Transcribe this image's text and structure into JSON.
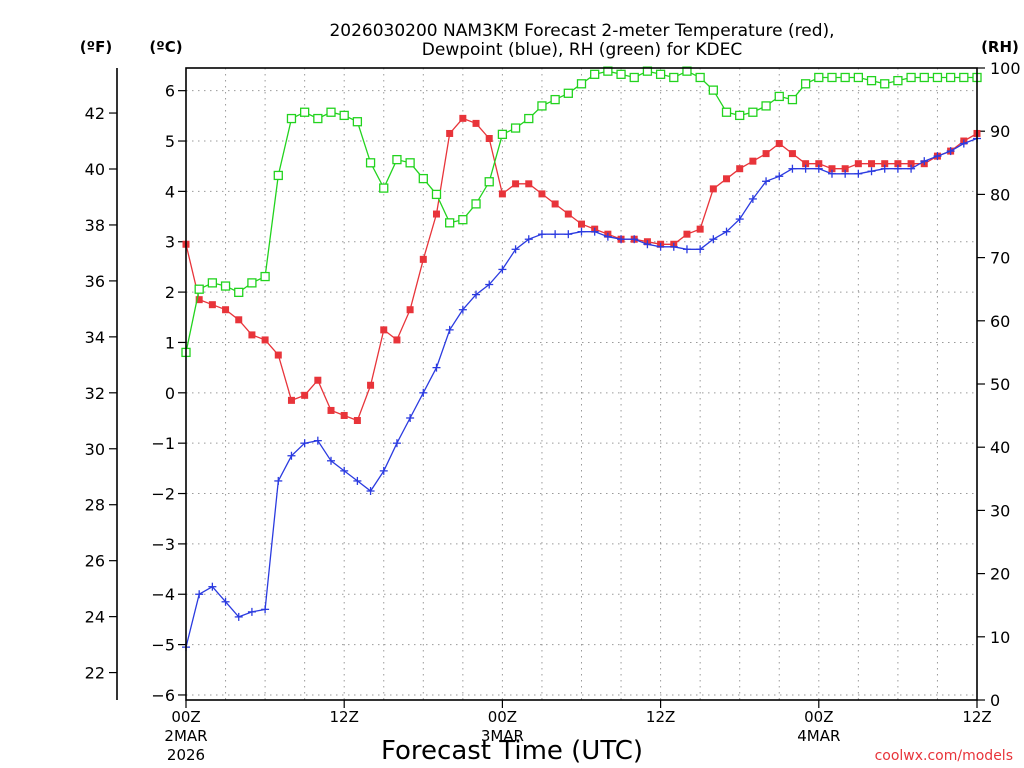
{
  "chart_data": {
    "type": "line",
    "title_line1": "2026030200 NAM3KM Forecast 2-meter Temperature (red),",
    "title_line2": "Dewpoint (blue), RH (green) for KDEC",
    "xlabel": "Forecast Time (UTC)",
    "left_outer_unit": "(ºF)",
    "left_inner_unit": "(ºC)",
    "right_unit": "(RH)",
    "credit": "coolwx.com/models",
    "x_range_hours": [
      0,
      60
    ],
    "ylim_c": [
      -6.1,
      6.45
    ],
    "ylim_rh": [
      0,
      100
    ],
    "x_ticks": [
      {
        "hour": 0,
        "label": "00Z",
        "sub1": "2MAR",
        "sub2": "2026"
      },
      {
        "hour": 12,
        "label": "12Z",
        "sub1": "",
        "sub2": ""
      },
      {
        "hour": 24,
        "label": "00Z",
        "sub1": "3MAR",
        "sub2": ""
      },
      {
        "hour": 36,
        "label": "12Z",
        "sub1": "",
        "sub2": ""
      },
      {
        "hour": 48,
        "label": "00Z",
        "sub1": "4MAR",
        "sub2": ""
      },
      {
        "hour": 60,
        "label": "12Z",
        "sub1": "",
        "sub2": ""
      }
    ],
    "c_ticks": [
      -6,
      -5,
      -4,
      -3,
      -2,
      -1,
      0,
      1,
      2,
      3,
      4,
      5,
      6
    ],
    "f_ticks": [
      22,
      24,
      26,
      28,
      30,
      32,
      34,
      36,
      38,
      40,
      42
    ],
    "rh_ticks": [
      0,
      10,
      20,
      30,
      40,
      50,
      60,
      70,
      80,
      90,
      100
    ],
    "series": [
      {
        "name": "Temperature",
        "unit": "C",
        "color": "#e8343a",
        "marker": "square-filled",
        "hours": [
          0,
          1,
          2,
          3,
          4,
          5,
          6,
          7,
          8,
          9,
          10,
          11,
          12,
          13,
          14,
          15,
          16,
          17,
          18,
          19,
          20,
          21,
          22,
          23,
          24,
          25,
          26,
          27,
          28,
          29,
          30,
          31,
          32,
          33,
          34,
          35,
          36,
          37,
          38,
          39,
          40,
          41,
          42,
          43,
          44,
          45,
          46,
          47,
          48,
          49,
          50,
          51,
          52,
          53,
          54,
          55,
          56,
          57,
          58,
          59,
          60
        ],
        "values": [
          2.95,
          1.85,
          1.75,
          1.65,
          1.45,
          1.15,
          1.05,
          0.75,
          -0.15,
          -0.05,
          0.25,
          -0.35,
          -0.45,
          -0.55,
          0.15,
          1.25,
          1.05,
          1.65,
          2.65,
          3.55,
          5.15,
          5.45,
          5.35,
          5.05,
          3.95,
          4.15,
          4.15,
          3.95,
          3.75,
          3.55,
          3.35,
          3.25,
          3.15,
          3.05,
          3.05,
          3.0,
          2.95,
          2.95,
          3.15,
          3.25,
          4.05,
          4.25,
          4.45,
          4.6,
          4.75,
          4.95,
          4.75,
          4.55,
          4.55,
          4.45,
          4.45,
          4.55,
          4.55,
          4.55,
          4.55,
          4.55,
          4.55,
          4.7,
          4.8,
          5.0,
          5.15
        ]
      },
      {
        "name": "Dewpoint",
        "unit": "C",
        "color": "#2b3be0",
        "marker": "plus",
        "hours": [
          0,
          1,
          2,
          3,
          4,
          5,
          6,
          7,
          8,
          9,
          10,
          11,
          12,
          13,
          14,
          15,
          16,
          17,
          18,
          19,
          20,
          21,
          22,
          23,
          24,
          25,
          26,
          27,
          28,
          29,
          30,
          31,
          32,
          33,
          34,
          35,
          36,
          37,
          38,
          39,
          40,
          41,
          42,
          43,
          44,
          45,
          46,
          47,
          48,
          49,
          50,
          51,
          52,
          53,
          54,
          55,
          56,
          57,
          58,
          59,
          60
        ],
        "values": [
          -5.05,
          -4.0,
          -3.85,
          -4.15,
          -4.45,
          -4.35,
          -4.3,
          -1.75,
          -1.25,
          -1.0,
          -0.95,
          -1.35,
          -1.55,
          -1.75,
          -1.95,
          -1.55,
          -1.0,
          -0.5,
          0.0,
          0.5,
          1.25,
          1.65,
          1.95,
          2.15,
          2.45,
          2.85,
          3.05,
          3.15,
          3.15,
          3.15,
          3.2,
          3.2,
          3.1,
          3.05,
          3.05,
          2.95,
          2.9,
          2.9,
          2.85,
          2.85,
          3.05,
          3.2,
          3.45,
          3.85,
          4.2,
          4.3,
          4.45,
          4.45,
          4.45,
          4.35,
          4.35,
          4.35,
          4.4,
          4.45,
          4.45,
          4.45,
          4.6,
          4.7,
          4.8,
          4.95,
          5.05
        ]
      },
      {
        "name": "RH",
        "unit": "%",
        "color": "#22d31e",
        "marker": "square-open",
        "hours": [
          0,
          1,
          2,
          3,
          4,
          5,
          6,
          7,
          8,
          9,
          10,
          11,
          12,
          13,
          14,
          15,
          16,
          17,
          18,
          19,
          20,
          21,
          22,
          23,
          24,
          25,
          26,
          27,
          28,
          29,
          30,
          31,
          32,
          33,
          34,
          35,
          36,
          37,
          38,
          39,
          40,
          41,
          42,
          43,
          44,
          45,
          46,
          47,
          48,
          49,
          50,
          51,
          52,
          53,
          54,
          55,
          56,
          57,
          58,
          59,
          60
        ],
        "values": [
          55,
          65,
          66,
          65.5,
          64.5,
          66,
          67,
          83,
          92,
          93,
          92,
          93,
          92.5,
          91.5,
          85,
          81,
          85.5,
          85,
          82.5,
          80,
          75.5,
          76,
          78.5,
          82,
          89.5,
          90.5,
          92,
          94,
          95,
          96,
          97.5,
          99,
          99.5,
          99,
          98.5,
          99.5,
          99,
          98.5,
          99.5,
          98.5,
          96.5,
          93,
          92.5,
          93,
          94,
          95.5,
          95,
          97.5,
          98.5,
          98.5,
          98.5,
          98.5,
          98,
          97.5,
          98,
          98.5,
          98.5,
          98.5,
          98.5,
          98.5,
          98.5
        ]
      }
    ]
  }
}
